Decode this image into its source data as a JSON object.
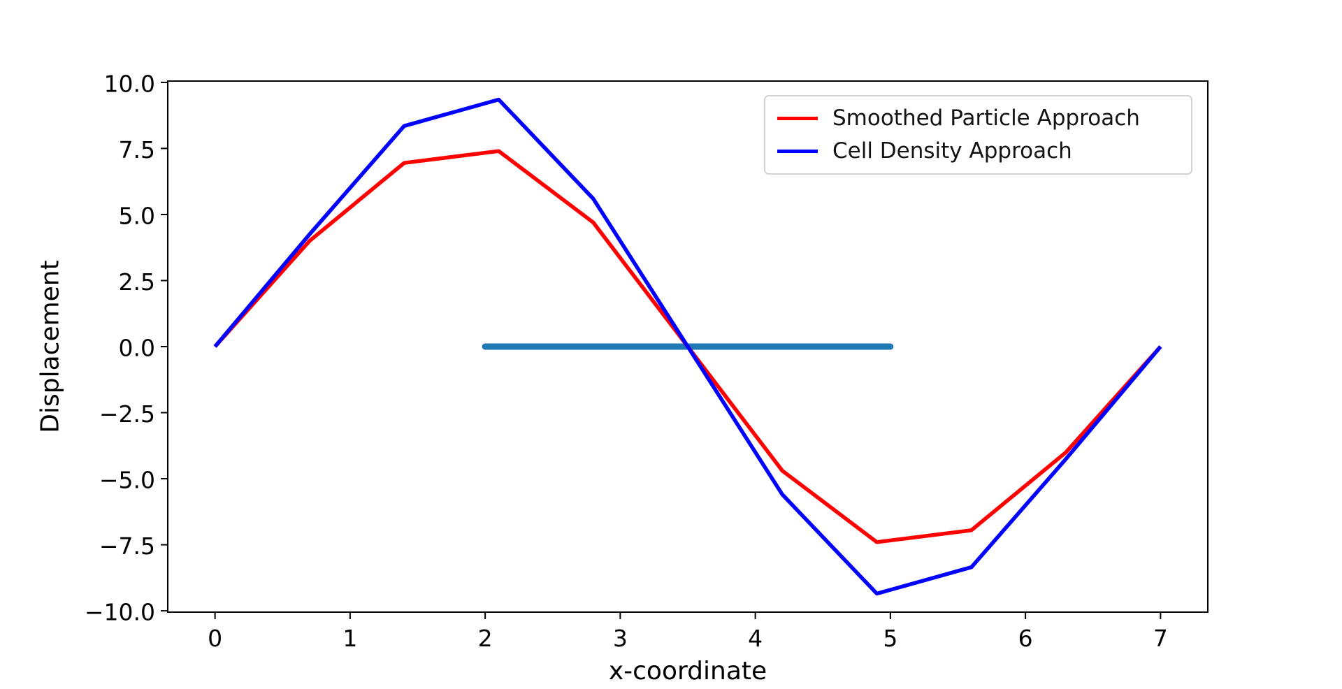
{
  "figure": {
    "background": "#ffffff",
    "text_color": "#000000",
    "axis_color": "#000000"
  },
  "chart_data": {
    "type": "line",
    "title": "",
    "xlabel": "x-coordinate",
    "ylabel": "Displacement",
    "xlim": [
      -0.35,
      7.35
    ],
    "ylim": [
      -10.05,
      10.05
    ],
    "grid": false,
    "legend_position": "upper right",
    "x_ticks": [
      0,
      1,
      2,
      3,
      4,
      5,
      6,
      7
    ],
    "x_tick_labels": [
      "0",
      "1",
      "2",
      "3",
      "4",
      "5",
      "6",
      "7"
    ],
    "y_ticks": [
      -10,
      -7.5,
      -5,
      -2.5,
      0,
      2.5,
      5,
      7.5,
      10
    ],
    "y_tick_labels": [
      "−10.0",
      "−7.5",
      "−5.0",
      "−2.5",
      "0.0",
      "2.5",
      "5.0",
      "7.5",
      "10.0"
    ],
    "x": [
      0,
      0.7,
      1.4,
      2.1,
      2.8,
      3.5,
      4.2,
      4.9,
      5.6,
      6.3,
      7
    ],
    "series": [
      {
        "name": "zero-line-segment",
        "in_legend": false,
        "color": "#1f77b4",
        "linewidth": 9,
        "linecap": "round",
        "x": [
          2,
          5
        ],
        "values": [
          0,
          0
        ]
      },
      {
        "name": "Smoothed Particle Approach",
        "in_legend": true,
        "color": "#ff0000",
        "linewidth": 5.5,
        "linecap": "butt",
        "values": [
          0,
          4.0,
          6.95,
          7.4,
          4.7,
          0,
          -4.7,
          -7.4,
          -6.95,
          -4.0,
          0
        ]
      },
      {
        "name": "Cell Density Approach",
        "in_legend": true,
        "color": "#0000ff",
        "linewidth": 5.5,
        "linecap": "butt",
        "values": [
          0,
          4.25,
          8.35,
          9.35,
          5.6,
          0,
          -5.6,
          -9.35,
          -8.35,
          -4.25,
          0
        ]
      }
    ]
  },
  "legend": {
    "entries": [
      {
        "label": "Smoothed Particle Approach",
        "color": "#ff0000"
      },
      {
        "label": "Cell Density Approach",
        "color": "#0000ff"
      }
    ]
  }
}
